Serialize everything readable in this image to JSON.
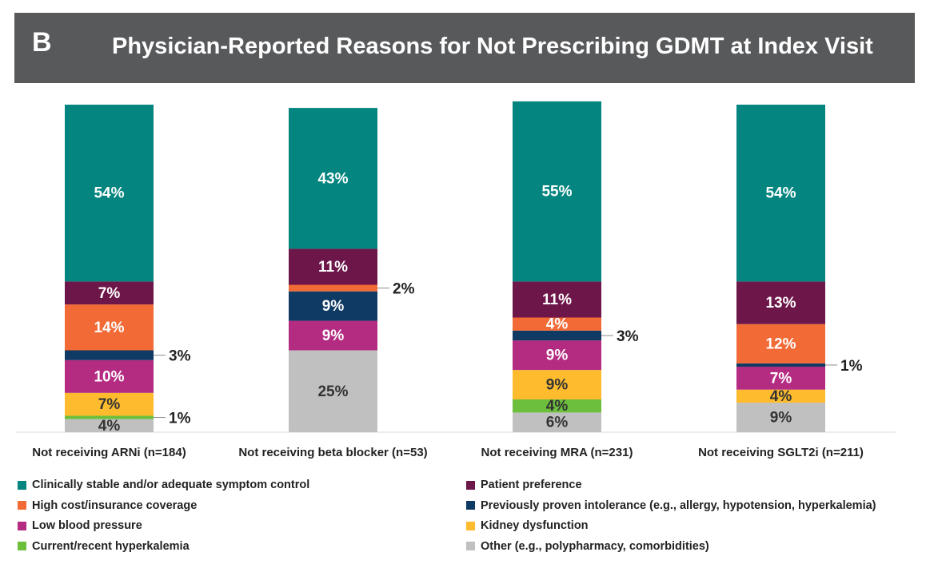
{
  "header": {
    "panel_letter": "B",
    "title": "Physician-Reported Reasons for Not Prescribing GDMT at Index Visit"
  },
  "chart_data": {
    "type": "bar",
    "stacked": true,
    "normalized_percent": true,
    "title": "Physician-Reported Reasons for Not Prescribing GDMT at Index Visit",
    "xlabel": "",
    "ylabel": "",
    "ylim": [
      0,
      100
    ],
    "grid": false,
    "legend_position": "bottom",
    "categories": [
      "Not receiving ARNi (n=184)",
      "Not receiving beta blocker (n=53)",
      "Not receiving MRA (n=231)",
      "Not receiving SGLT2i (n=211)"
    ],
    "series": [
      {
        "name": "Other (e.g., polypharmacy, comorbidities)",
        "color": "#c0c0c0",
        "values": [
          4,
          25,
          6,
          9
        ],
        "labels": [
          "4%",
          "25%",
          "6%",
          "9%"
        ]
      },
      {
        "name": "Current/recent hyperkalemia",
        "color": "#6cbf3c",
        "values": [
          1,
          0,
          4,
          0
        ],
        "labels": [
          "1%",
          "",
          "4%",
          ""
        ]
      },
      {
        "name": "Kidney dysfunction",
        "color": "#fdbb2d",
        "values": [
          7,
          0,
          9,
          4
        ],
        "labels": [
          "7%",
          "",
          "9%",
          "4%"
        ]
      },
      {
        "name": "Low blood pressure",
        "color": "#b42b82",
        "values": [
          10,
          9,
          9,
          7
        ],
        "labels": [
          "10%",
          "9%",
          "9%",
          "7%"
        ]
      },
      {
        "name": "Previously proven intolerance (e.g., allergy, hypotension, hyperkalemia)",
        "color": "#0f3a63",
        "values": [
          3,
          9,
          3,
          1
        ],
        "labels": [
          "3%",
          "9%",
          "3%",
          "1%"
        ]
      },
      {
        "name": "High cost/insurance coverage",
        "color": "#f26b37",
        "values": [
          14,
          2,
          4,
          12
        ],
        "labels": [
          "14%",
          "2%",
          "4%",
          "12%"
        ]
      },
      {
        "name": "Patient preference",
        "color": "#6d1649",
        "values": [
          7,
          11,
          11,
          13
        ],
        "labels": [
          "7%",
          "11%",
          "11%",
          "13%"
        ]
      },
      {
        "name": "Clinically stable and/or adequate symptom control",
        "color": "#04857f",
        "values": [
          54,
          43,
          55,
          54
        ],
        "labels": [
          "54%",
          "43%",
          "55%",
          "54%"
        ]
      }
    ],
    "legend_order": [
      "Clinically stable and/or adequate symptom control",
      "Patient preference",
      "High cost/insurance coverage",
      "Previously proven intolerance (e.g., allergy, hypotension, hyperkalemia)",
      "Low blood pressure",
      "Kidney dysfunction",
      "Current/recent hyperkalemia",
      "Other (e.g., polypharmacy, comorbidities)"
    ]
  }
}
